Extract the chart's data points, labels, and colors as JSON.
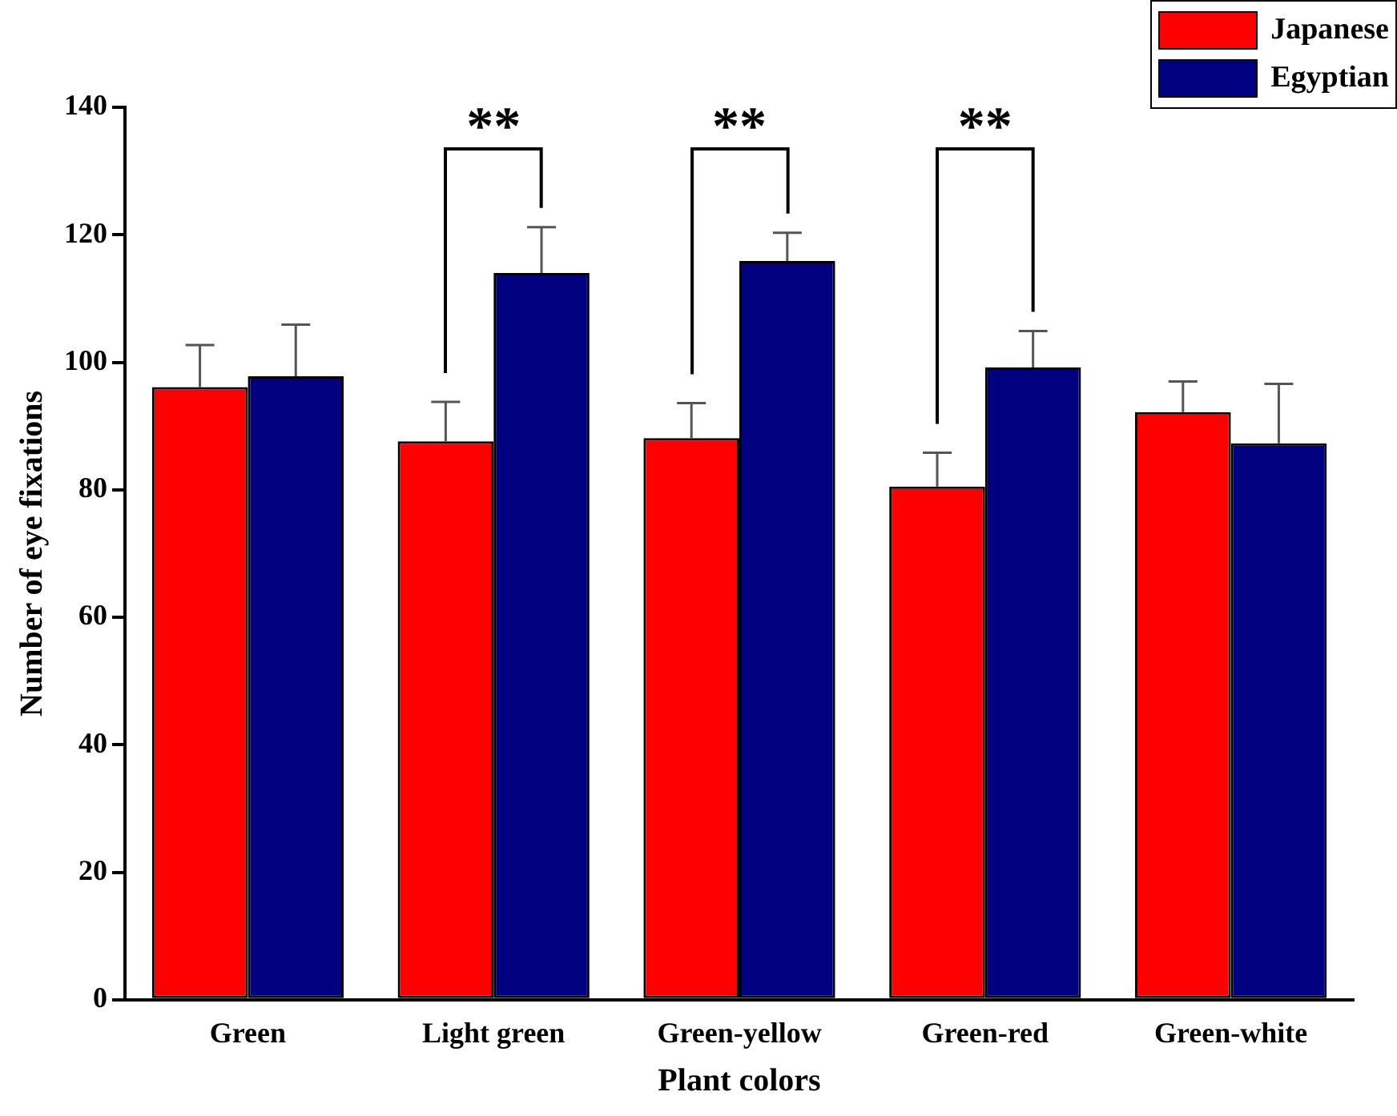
{
  "chart_data": {
    "type": "bar",
    "xlabel": "Plant colors",
    "ylabel": "Number of eye fixations",
    "categories": [
      "Green",
      "Light green",
      "Green-yellow",
      "Green-red",
      "Green-white"
    ],
    "series": [
      {
        "name": "Japanese",
        "color": "#ff0000",
        "values": [
          96.1,
          87.6,
          88.1,
          80.5,
          92.2
        ],
        "errors": [
          6.6,
          6.2,
          5.5,
          5.3,
          4.8
        ]
      },
      {
        "name": "Egyptian",
        "color": "#000080",
        "values": [
          97.8,
          114.0,
          115.9,
          99.2,
          87.3
        ],
        "errors": [
          8.1,
          7.2,
          4.4,
          5.7,
          9.3
        ]
      }
    ],
    "ylim": [
      0,
      140
    ],
    "yticks": [
      0,
      20,
      40,
      60,
      80,
      100,
      120,
      140
    ],
    "grid": false,
    "legend": "top right",
    "annotations": [
      "**",
      "**",
      "**"
    ]
  }
}
